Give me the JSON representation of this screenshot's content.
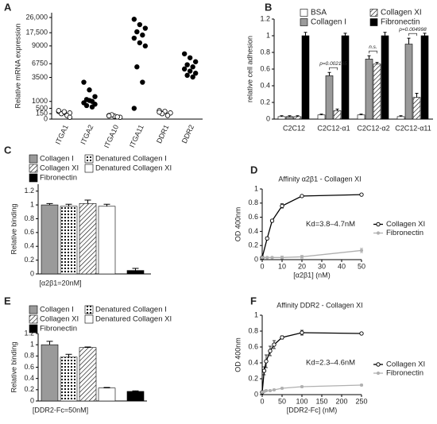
{
  "chart_data": [
    {
      "label": "A",
      "type": "strip",
      "ylabel": "Relative mRNA expression",
      "categories": [
        "ITGA1",
        "ITGA2",
        "ITGA10",
        "ITGA11",
        "DDR1",
        "DDR2"
      ],
      "values": [
        [
          300,
          250,
          200,
          150,
          100,
          350,
          280,
          50
        ],
        [
          3000,
          2200,
          1500,
          1200,
          1000,
          900,
          1100,
          800,
          700,
          600
        ],
        [
          100,
          80,
          50,
          120,
          60,
          90
        ],
        [
          25000,
          22000,
          20000,
          18000,
          16000,
          14000,
          11000,
          9000,
          6000,
          3000,
          500
        ],
        [
          350,
          300,
          200,
          150,
          100,
          250
        ],
        [
          8000,
          7500,
          7000,
          6500,
          6000,
          5500,
          5000,
          4500,
          4000,
          3600
        ]
      ],
      "marker_fill": [
        "#ffffff",
        "#000000",
        "#ffffff",
        "#000000",
        "#ffffff",
        "#000000"
      ],
      "ylim": [
        0,
        26000
      ],
      "yticks": [
        0,
        150,
        500,
        1000,
        3500,
        6750,
        9000,
        {
          "value": 17500,
          "label": "17,500"
        },
        {
          "value": 26000,
          "label": "26,000"
        }
      ]
    },
    {
      "label": "B",
      "type": "bar",
      "ylabel": "relative cell adhesion",
      "categories": [
        "C2C12",
        "C2C12-α1",
        "C2C12-α2",
        "C2C12-α11"
      ],
      "series": [
        {
          "name": "BSA",
          "color": "#ffffff",
          "values": [
            0.03,
            0.05,
            0.05,
            0.03
          ],
          "errors": [
            0.01,
            0.01,
            0.01,
            0.01
          ]
        },
        {
          "name": "Collagen I",
          "color": "#9a9a9a",
          "values": [
            0.03,
            0.52,
            0.72,
            0.9
          ],
          "errors": [
            0.01,
            0.04,
            0.04,
            0.07
          ]
        },
        {
          "name": "Collagen XI",
          "color": "#ffffff",
          "pattern": "hatch",
          "values": [
            0.03,
            0.1,
            0.66,
            0.26
          ],
          "errors": [
            0.01,
            0.02,
            0.02,
            0.05
          ]
        },
        {
          "name": "Fibronectin",
          "color": "#000000",
          "values": [
            1.0,
            1.0,
            1.0,
            1.0
          ],
          "errors": [
            0.04,
            0.03,
            0.04,
            0.03
          ]
        }
      ],
      "annotations": [
        "p=0.002165",
        "n.s.",
        "p=0.004998"
      ],
      "ylim": [
        0,
        1.2
      ],
      "yticks": [
        0,
        0.2,
        0.4,
        0.6,
        0.8,
        1,
        1.2
      ]
    },
    {
      "label": "C",
      "type": "bar",
      "ylabel": "Relative binding",
      "xlabel": "[α2β1=20nM]",
      "series": [
        {
          "name": "Collagen I",
          "color": "#9a9a9a",
          "values": [
            1.0
          ],
          "errors": [
            0.02
          ]
        },
        {
          "name": "Denatured Collagen I",
          "color": "#ffffff",
          "pattern": "dots",
          "values": [
            0.98
          ],
          "errors": [
            0.03
          ]
        },
        {
          "name": "Collagen XI",
          "color": "#ffffff",
          "pattern": "hatch",
          "values": [
            1.02
          ],
          "errors": [
            0.05
          ]
        },
        {
          "name": "Denatured Collagen XI",
          "color": "#ffffff",
          "values": [
            0.98
          ],
          "errors": [
            0.03
          ]
        },
        {
          "name": "Fibronectin",
          "color": "#000000",
          "values": [
            0.05
          ],
          "errors": [
            0.03
          ]
        }
      ],
      "ylim": [
        0,
        1.3
      ],
      "yticks": [
        0,
        0.2,
        0.4,
        0.6,
        0.8,
        1,
        1.2
      ]
    },
    {
      "label": "D",
      "type": "line",
      "title": "Affinity α2β1 - Collagen XI",
      "ylabel": "OD 400nm",
      "xlabel": "[α2β1] (nM)",
      "annotations": [
        "Kd=3.8–4.7nM"
      ],
      "x": [
        0,
        2.5,
        5,
        10,
        20,
        50
      ],
      "series": [
        {
          "name": "Collagen XI",
          "color": "#000000",
          "values": [
            0.03,
            0.3,
            0.55,
            0.76,
            0.9,
            0.92
          ],
          "errors": [
            0.01,
            0.02,
            0.02,
            0.03,
            0.01,
            0.01
          ]
        },
        {
          "name": "Fibronectin",
          "color": "#b0b0b0",
          "values": [
            0.03,
            0.03,
            0.03,
            0.03,
            0.04,
            0.13
          ],
          "errors": [
            0.01,
            0.01,
            0.01,
            0.02,
            0.02,
            0.03
          ]
        }
      ],
      "xlim": [
        0,
        50
      ],
      "xticks": [
        0,
        10,
        20,
        30,
        40,
        50
      ],
      "ylim": [
        0,
        1
      ],
      "yticks": [
        0,
        0.2,
        0.4,
        0.6,
        0.8,
        1
      ]
    },
    {
      "label": "E",
      "type": "bar",
      "ylabel": "Relative binding",
      "xlabel": "[DDR2-Fc=50nM]",
      "series": [
        {
          "name": "Collagen I",
          "color": "#9a9a9a",
          "values": [
            1.0
          ],
          "errors": [
            0.06
          ]
        },
        {
          "name": "Denatured Collagen I",
          "color": "#ffffff",
          "pattern": "dots",
          "values": [
            0.78
          ],
          "errors": [
            0.05
          ]
        },
        {
          "name": "Collagen XI",
          "color": "#ffffff",
          "pattern": "hatch",
          "values": [
            0.95
          ],
          "errors": [
            0.01
          ]
        },
        {
          "name": "Denatured Collagen XI",
          "color": "#ffffff",
          "values": [
            0.23
          ],
          "errors": [
            0.01
          ]
        },
        {
          "name": "Fibronectin",
          "color": "#000000",
          "values": [
            0.17
          ],
          "errors": [
            0.01
          ]
        }
      ],
      "ylim": [
        0,
        1.2
      ],
      "yticks": [
        0,
        0.2,
        0.4,
        0.6,
        0.8,
        1,
        1.2
      ]
    },
    {
      "label": "F",
      "type": "line",
      "title": "Affinity DDR2 - Collagen XI",
      "ylabel": "OD 400nm",
      "xlabel": "[DDR2-Fc] (nM)",
      "annotations": [
        "Kd=2.3–4.6nM"
      ],
      "x": [
        0,
        5,
        10,
        20,
        30,
        50,
        100,
        250
      ],
      "series": [
        {
          "name": "Collagen XI",
          "color": "#000000",
          "values": [
            0.03,
            0.3,
            0.42,
            0.55,
            0.63,
            0.72,
            0.78,
            0.77
          ],
          "errors": [
            0.01,
            0.05,
            0.08,
            0.06,
            0.05,
            0.02,
            0.03,
            0.01
          ]
        },
        {
          "name": "Fibronectin",
          "color": "#b0b0b0",
          "values": [
            0.03,
            0.04,
            0.05,
            0.05,
            0.06,
            0.08,
            0.1,
            0.12
          ],
          "errors": [
            0.01,
            0.01,
            0.01,
            0.01,
            0.01,
            0.01,
            0.01,
            0.01
          ]
        }
      ],
      "xlim": [
        0,
        250
      ],
      "xticks": [
        0,
        50,
        100,
        150,
        200,
        250
      ],
      "ylim": [
        0,
        1
      ],
      "yticks": [
        0,
        0.2,
        0.4,
        0.6,
        0.8,
        1
      ]
    }
  ]
}
